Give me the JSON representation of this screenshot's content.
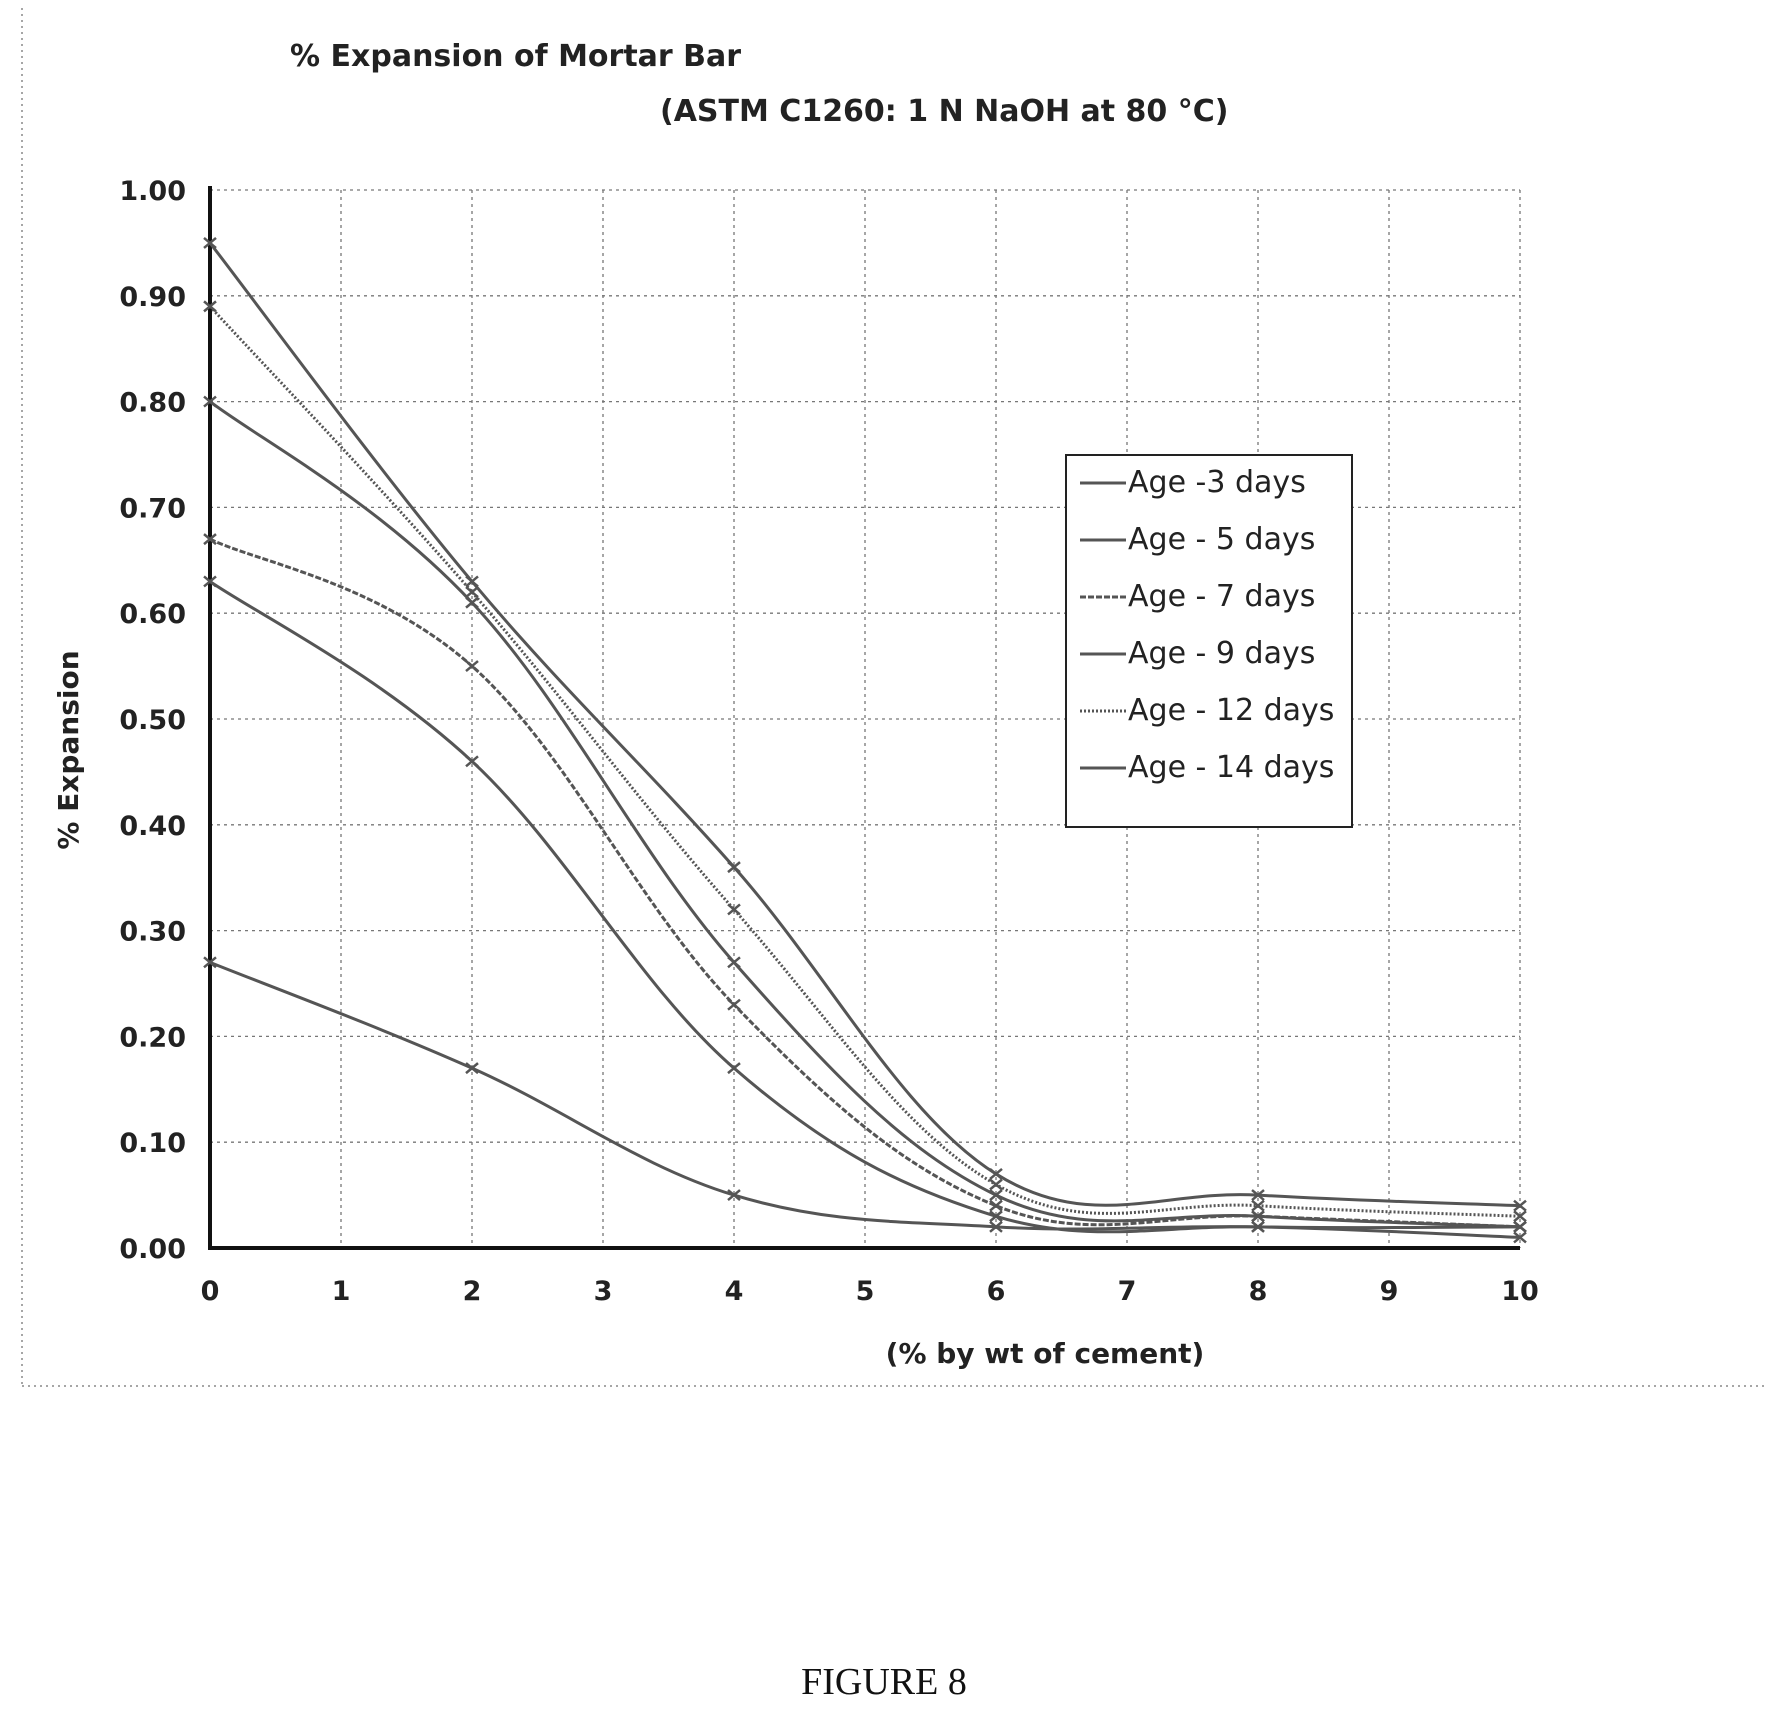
{
  "chart_data": {
    "type": "line",
    "title": "% Expansion of Mortar Bar",
    "subtitle": "(ASTM C1260: 1 N NaOH at 80 °C)",
    "xlabel": "(% by wt of cement)",
    "ylabel": "% Expansion",
    "xlim": [
      0,
      10
    ],
    "ylim": [
      0,
      1.0
    ],
    "x_ticks": [
      "0",
      "1",
      "2",
      "3",
      "4",
      "5",
      "6",
      "7",
      "8",
      "9",
      "10"
    ],
    "y_ticks": [
      "0.00",
      "0.10",
      "0.20",
      "0.30",
      "0.40",
      "0.50",
      "0.60",
      "0.70",
      "0.80",
      "0.90",
      "1.00"
    ],
    "grid": true,
    "legend_position": "right",
    "series": [
      {
        "name": "Age -3 days",
        "x": [
          0,
          2,
          4,
          6,
          8,
          10
        ],
        "values": [
          0.27,
          0.17,
          0.05,
          0.02,
          0.02,
          0.01
        ]
      },
      {
        "name": "Age - 5 days",
        "x": [
          0,
          2,
          4,
          6,
          8,
          10
        ],
        "values": [
          0.63,
          0.46,
          0.17,
          0.03,
          0.02,
          0.02
        ]
      },
      {
        "name": "Age - 7 days",
        "x": [
          0,
          2,
          4,
          6,
          8,
          10
        ],
        "values": [
          0.67,
          0.55,
          0.23,
          0.04,
          0.03,
          0.02
        ]
      },
      {
        "name": "Age - 9 days",
        "x": [
          0,
          2,
          4,
          6,
          8,
          10
        ],
        "values": [
          0.8,
          0.61,
          0.27,
          0.05,
          0.03,
          0.02
        ]
      },
      {
        "name": "Age - 12 days",
        "x": [
          0,
          2,
          4,
          6,
          8,
          10
        ],
        "values": [
          0.89,
          0.62,
          0.32,
          0.06,
          0.04,
          0.03
        ]
      },
      {
        "name": "Age - 14 days",
        "x": [
          0,
          2,
          4,
          6,
          8,
          10
        ],
        "values": [
          0.95,
          0.63,
          0.36,
          0.07,
          0.05,
          0.04
        ]
      }
    ]
  },
  "caption": "FIGURE 8",
  "colors": {
    "line": "#555555",
    "grid": "#777777",
    "axis": "#111111"
  }
}
